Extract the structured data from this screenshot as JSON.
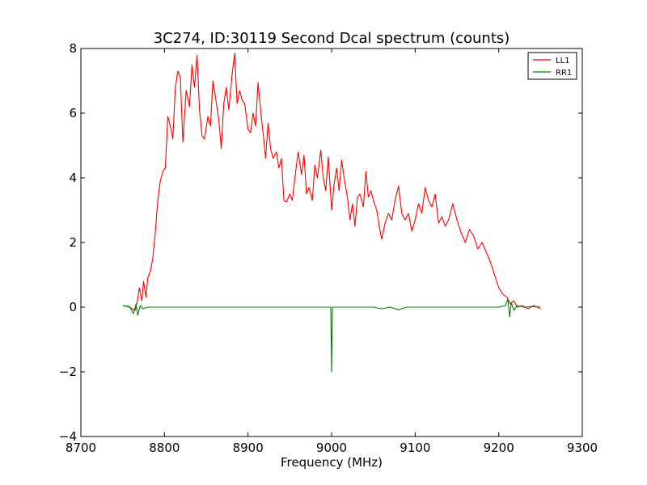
{
  "chart_data": {
    "type": "line",
    "title": "3C274, ID:30119 Second Dcal spectrum (counts)",
    "xlabel": "Frequency (MHz)",
    "ylabel": "",
    "xlim": [
      8700,
      9300
    ],
    "ylim": [
      -4,
      8
    ],
    "xticks": [
      8700,
      8800,
      8900,
      9000,
      9100,
      9200,
      9300
    ],
    "yticks": [
      -4,
      -2,
      0,
      2,
      4,
      6,
      8
    ],
    "xtick_labels": [
      "8700",
      "8800",
      "8900",
      "9000",
      "9100",
      "9200",
      "9300"
    ],
    "ytick_labels": [
      "−4",
      "−2",
      "0",
      "2",
      "4",
      "6",
      "8"
    ],
    "grid": false,
    "legend_position": "top-right",
    "series": [
      {
        "name": "LL1",
        "color": "#ff0000",
        "points": [
          [
            8750,
            0.05
          ],
          [
            8758,
            0.0
          ],
          [
            8765,
            -0.1
          ],
          [
            8768,
            0.25
          ],
          [
            8770,
            0.6
          ],
          [
            8773,
            0.2
          ],
          [
            8775,
            0.8
          ],
          [
            8778,
            0.3
          ],
          [
            8780,
            0.9
          ],
          [
            8783,
            1.1
          ],
          [
            8786,
            1.5
          ],
          [
            8789,
            2.3
          ],
          [
            8792,
            3.3
          ],
          [
            8795,
            3.9
          ],
          [
            8798,
            4.2
          ],
          [
            8801,
            4.3
          ],
          [
            8804,
            5.9
          ],
          [
            8807,
            5.6
          ],
          [
            8810,
            5.2
          ],
          [
            8813,
            6.8
          ],
          [
            8816,
            7.3
          ],
          [
            8819,
            7.1
          ],
          [
            8822,
            5.1
          ],
          [
            8826,
            6.7
          ],
          [
            8830,
            6.2
          ],
          [
            8833,
            7.5
          ],
          [
            8836,
            6.8
          ],
          [
            8839,
            7.8
          ],
          [
            8842,
            6.1
          ],
          [
            8845,
            5.3
          ],
          [
            8848,
            5.2
          ],
          [
            8852,
            5.9
          ],
          [
            8855,
            5.6
          ],
          [
            8858,
            7.0
          ],
          [
            8861,
            6.5
          ],
          [
            8865,
            5.8
          ],
          [
            8868,
            4.9
          ],
          [
            8871,
            6.3
          ],
          [
            8874,
            6.8
          ],
          [
            8877,
            6.1
          ],
          [
            8881,
            7.2
          ],
          [
            8884,
            7.85
          ],
          [
            8887,
            6.3
          ],
          [
            8890,
            6.7
          ],
          [
            8893,
            6.4
          ],
          [
            8896,
            6.3
          ],
          [
            8900,
            5.5
          ],
          [
            8903,
            5.4
          ],
          [
            8906,
            6.0
          ],
          [
            8909,
            5.6
          ],
          [
            8912,
            6.95
          ],
          [
            8915,
            6.1
          ],
          [
            8918,
            5.4
          ],
          [
            8921,
            4.6
          ],
          [
            8924,
            5.7
          ],
          [
            8927,
            4.9
          ],
          [
            8930,
            4.6
          ],
          [
            8934,
            4.8
          ],
          [
            8937,
            4.3
          ],
          [
            8940,
            4.6
          ],
          [
            8943,
            3.3
          ],
          [
            8946,
            3.25
          ],
          [
            8950,
            3.5
          ],
          [
            8953,
            3.3
          ],
          [
            8957,
            4.2
          ],
          [
            8960,
            4.8
          ],
          [
            8964,
            4.1
          ],
          [
            8967,
            4.7
          ],
          [
            8970,
            3.5
          ],
          [
            8973,
            3.7
          ],
          [
            8977,
            3.3
          ],
          [
            8980,
            4.4
          ],
          [
            8983,
            4.0
          ],
          [
            8987,
            4.85
          ],
          [
            8990,
            4.0
          ],
          [
            8993,
            3.6
          ],
          [
            8996,
            4.65
          ],
          [
            9000,
            3.0
          ],
          [
            9003,
            3.8
          ],
          [
            9006,
            4.3
          ],
          [
            9009,
            3.6
          ],
          [
            9012,
            4.55
          ],
          [
            9015,
            4.0
          ],
          [
            9019,
            3.4
          ],
          [
            9022,
            2.7
          ],
          [
            9025,
            3.2
          ],
          [
            9028,
            2.5
          ],
          [
            9031,
            3.4
          ],
          [
            9034,
            3.5
          ],
          [
            9038,
            3.1
          ],
          [
            9041,
            4.2
          ],
          [
            9044,
            3.4
          ],
          [
            9047,
            3.6
          ],
          [
            9050,
            3.3
          ],
          [
            9054,
            3.0
          ],
          [
            9057,
            2.5
          ],
          [
            9060,
            2.1
          ],
          [
            9064,
            2.6
          ],
          [
            9068,
            2.9
          ],
          [
            9072,
            2.7
          ],
          [
            9076,
            3.3
          ],
          [
            9080,
            3.75
          ],
          [
            9084,
            2.9
          ],
          [
            9088,
            2.7
          ],
          [
            9092,
            2.9
          ],
          [
            9096,
            2.35
          ],
          [
            9100,
            2.7
          ],
          [
            9104,
            3.2
          ],
          [
            9108,
            2.9
          ],
          [
            9112,
            3.7
          ],
          [
            9116,
            3.3
          ],
          [
            9120,
            3.1
          ],
          [
            9124,
            3.5
          ],
          [
            9128,
            2.6
          ],
          [
            9132,
            2.8
          ],
          [
            9136,
            2.5
          ],
          [
            9140,
            2.7
          ],
          [
            9145,
            3.2
          ],
          [
            9150,
            2.7
          ],
          [
            9155,
            2.3
          ],
          [
            9160,
            2.0
          ],
          [
            9165,
            2.4
          ],
          [
            9170,
            2.2
          ],
          [
            9175,
            1.8
          ],
          [
            9180,
            2.0
          ],
          [
            9185,
            1.7
          ],
          [
            9190,
            1.4
          ],
          [
            9195,
            1.0
          ],
          [
            9200,
            0.6
          ],
          [
            9205,
            0.4
          ],
          [
            9210,
            0.3
          ],
          [
            9214,
            0.1
          ],
          [
            9218,
            0.2
          ],
          [
            9222,
            0.0
          ],
          [
            9228,
            0.05
          ],
          [
            9235,
            -0.05
          ],
          [
            9242,
            0.05
          ],
          [
            9250,
            -0.05
          ]
        ]
      },
      {
        "name": "RR1",
        "color": "#008000",
        "points": [
          [
            8750,
            0.05
          ],
          [
            8758,
            0.02
          ],
          [
            8763,
            -0.2
          ],
          [
            8766,
            0.1
          ],
          [
            8768,
            -0.25
          ],
          [
            8771,
            0.05
          ],
          [
            8774,
            -0.05
          ],
          [
            8780,
            0.0
          ],
          [
            8800,
            0.0
          ],
          [
            8850,
            0.0
          ],
          [
            8900,
            0.0
          ],
          [
            8950,
            0.0
          ],
          [
            8999,
            0.0
          ],
          [
            9000,
            -2.0
          ],
          [
            9001,
            0.0
          ],
          [
            9050,
            0.0
          ],
          [
            9060,
            -0.05
          ],
          [
            9070,
            0.0
          ],
          [
            9080,
            -0.08
          ],
          [
            9090,
            0.0
          ],
          [
            9100,
            0.0
          ],
          [
            9150,
            0.0
          ],
          [
            9200,
            0.0
          ],
          [
            9208,
            0.05
          ],
          [
            9211,
            0.25
          ],
          [
            9213,
            -0.3
          ],
          [
            9215,
            0.15
          ],
          [
            9218,
            -0.1
          ],
          [
            9222,
            0.05
          ],
          [
            9230,
            0.0
          ],
          [
            9240,
            0.02
          ],
          [
            9250,
            0.0
          ]
        ]
      }
    ]
  }
}
